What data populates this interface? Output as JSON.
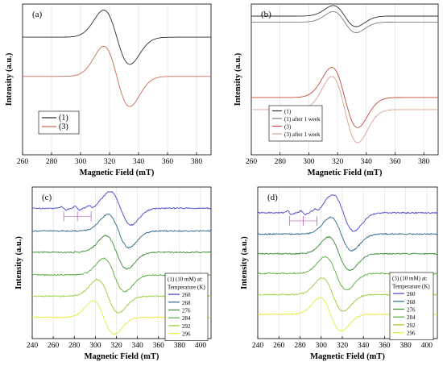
{
  "colors": {
    "background": "#ffffff",
    "grid": "#dcdcdc",
    "axis": "#000000",
    "arrow": "#c060c0"
  },
  "chart_data": [
    {
      "panel_label": "(a)",
      "type": "line",
      "xlabel": "Magnetic Field (mT)",
      "ylabel": "Intensity (a.u.)",
      "xlim": [
        260,
        390
      ],
      "xticks": [
        260,
        280,
        300,
        320,
        340,
        360,
        380
      ],
      "grid": true,
      "legend_position": "bottom-left",
      "series": [
        {
          "name": "(1)",
          "color": "#2e2e2e",
          "offset": 0.78,
          "center": 325,
          "width": 9,
          "amp": 0.18
        },
        {
          "name": "(3)",
          "color": "#c86a5a",
          "offset": 0.52,
          "center": 325,
          "width": 9,
          "amp": 0.2
        }
      ]
    },
    {
      "panel_label": "(b)",
      "type": "line",
      "xlabel": "Magnetic Field (mT)",
      "ylabel": "Intensity (a.u.)",
      "xlim": [
        260,
        390
      ],
      "xticks": [
        260,
        280,
        300,
        320,
        340,
        360,
        380
      ],
      "grid": true,
      "legend_position": "bottom-left",
      "series": [
        {
          "name": "(1)",
          "color": "#2e2e2e",
          "offset": 0.92,
          "center": 325,
          "width": 8,
          "amp": 0.07
        },
        {
          "name": "(1) after 1 week",
          "color": "#7a7a7a",
          "offset": 0.88,
          "center": 325,
          "width": 8,
          "amp": 0.07
        },
        {
          "name": "(3)",
          "color": "#c84a3a",
          "offset": 0.38,
          "center": 325,
          "width": 9,
          "amp": 0.2
        },
        {
          "name": "(3) after 1 week",
          "color": "#d8a090",
          "offset": 0.3,
          "center": 325,
          "width": 9,
          "amp": 0.22
        }
      ]
    },
    {
      "panel_label": "(c)",
      "type": "line",
      "xlabel": "Magnetic Field (mT)",
      "ylabel": "Intensity (a.u.)",
      "xlim": [
        240,
        410
      ],
      "xticks": [
        240,
        260,
        280,
        300,
        320,
        340,
        360,
        380,
        400
      ],
      "grid": true,
      "legend_position": "bottom-right",
      "legend_title": [
        "(1) (10 mM) at:",
        "Temperature (K)"
      ],
      "series": [
        {
          "name": "260",
          "color": "#4646c8",
          "offset": 0.86,
          "center": 324,
          "width": 10,
          "amp": 0.11,
          "hf": 1
        },
        {
          "name": "268",
          "color": "#2e6688",
          "offset": 0.71,
          "center": 322,
          "width": 10,
          "amp": 0.11
        },
        {
          "name": "276",
          "color": "#3a8a3a",
          "offset": 0.57,
          "center": 320,
          "width": 10,
          "amp": 0.11
        },
        {
          "name": "284",
          "color": "#5aaa3a",
          "offset": 0.42,
          "center": 318,
          "width": 10,
          "amp": 0.11
        },
        {
          "name": "292",
          "color": "#9acc3a",
          "offset": 0.28,
          "center": 312,
          "width": 10,
          "amp": 0.11
        },
        {
          "name": "296",
          "color": "#e6ec40",
          "offset": 0.14,
          "center": 308,
          "width": 10,
          "amp": 0.11
        }
      ]
    },
    {
      "panel_label": "(d)",
      "type": "line",
      "xlabel": "Magnetic Field (mT)",
      "ylabel": "Intensity (a.u.)",
      "xlim": [
        240,
        410
      ],
      "xticks": [
        240,
        260,
        280,
        300,
        320,
        340,
        360,
        380,
        400
      ],
      "grid": true,
      "legend_position": "bottom-right",
      "legend_title": [
        "(3) (10 mM) at:",
        "Temperature (K)"
      ],
      "series": [
        {
          "name": "260",
          "color": "#4646c8",
          "offset": 0.83,
          "center": 321,
          "width": 10,
          "amp": 0.12,
          "hf": 1
        },
        {
          "name": "268",
          "color": "#2e6688",
          "offset": 0.69,
          "center": 319,
          "width": 10,
          "amp": 0.11
        },
        {
          "name": "276",
          "color": "#3a8a3a",
          "offset": 0.56,
          "center": 317,
          "width": 10,
          "amp": 0.11
        },
        {
          "name": "284",
          "color": "#5aaa3a",
          "offset": 0.43,
          "center": 314,
          "width": 10,
          "amp": 0.11
        },
        {
          "name": "292",
          "color": "#9acc3a",
          "offset": 0.29,
          "center": 311,
          "width": 10,
          "amp": 0.11
        },
        {
          "name": "296",
          "color": "#e6ec40",
          "offset": 0.16,
          "center": 309,
          "width": 10,
          "amp": 0.11
        }
      ]
    }
  ]
}
